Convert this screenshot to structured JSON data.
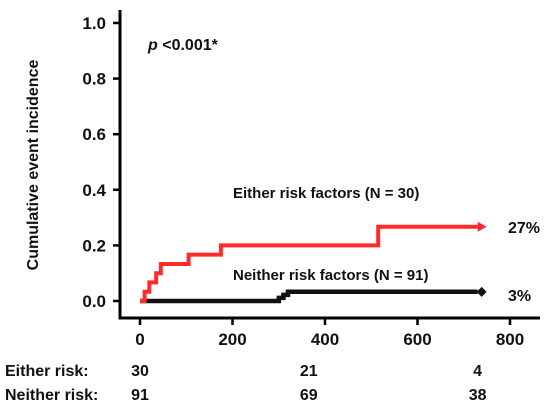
{
  "chart_data": {
    "type": "line",
    "subtype": "kaplan-meier-step",
    "ylabel": "Cumulative event incidence",
    "xlabel": "",
    "xlim": [
      -25,
      810
    ],
    "ylim": [
      0,
      1.05
    ],
    "x_ticks": [
      0,
      200,
      400,
      600,
      800
    ],
    "y_ticks": [
      0.0,
      0.2,
      0.4,
      0.6,
      0.8,
      1.0
    ],
    "x_tick_labels": [
      "0",
      "200",
      "400",
      "600",
      "800"
    ],
    "y_tick_labels": [
      "0.0",
      "0.2",
      "0.4",
      "0.6",
      "0.8",
      "1.0"
    ],
    "grid": false,
    "annotation": {
      "p_prefix": "p",
      "p_text": " <0.001*"
    },
    "series": [
      {
        "name": "Either risk factors (N = 30)",
        "color": "#ff2b2b",
        "end_label": "27%",
        "end_marker": "arrow",
        "points": [
          [
            0,
            0.0
          ],
          [
            10,
            0.0
          ],
          [
            10,
            0.033
          ],
          [
            20,
            0.033
          ],
          [
            20,
            0.067
          ],
          [
            35,
            0.067
          ],
          [
            35,
            0.1
          ],
          [
            45,
            0.1
          ],
          [
            45,
            0.133
          ],
          [
            105,
            0.133
          ],
          [
            105,
            0.167
          ],
          [
            175,
            0.167
          ],
          [
            175,
            0.2
          ],
          [
            515,
            0.2
          ],
          [
            515,
            0.267
          ],
          [
            730,
            0.267
          ]
        ]
      },
      {
        "name": "Neither risk factors (N = 91)",
        "color": "#111111",
        "end_label": "3%",
        "end_marker": "diamond",
        "points": [
          [
            0,
            0.0
          ],
          [
            300,
            0.0
          ],
          [
            300,
            0.011
          ],
          [
            310,
            0.011
          ],
          [
            310,
            0.022
          ],
          [
            320,
            0.022
          ],
          [
            320,
            0.033
          ],
          [
            730,
            0.033
          ]
        ]
      }
    ],
    "risk_table": {
      "times": [
        0,
        365,
        730
      ],
      "rows": [
        {
          "label": "Either risk:",
          "values": [
            "30",
            "21",
            "4"
          ]
        },
        {
          "label": "Neither risk:",
          "values": [
            "91",
            "69",
            "38"
          ]
        }
      ]
    }
  }
}
